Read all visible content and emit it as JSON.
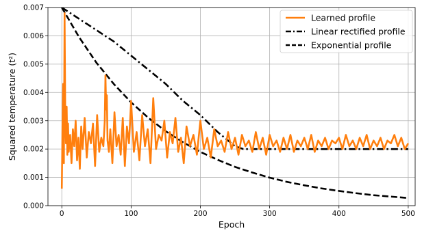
{
  "chart_data": {
    "type": "line",
    "title": "",
    "xlabel": "Epoch",
    "ylabel": "Squared temperature (t²)",
    "xlim": [
      -20,
      510
    ],
    "ylim": [
      0,
      0.007
    ],
    "xticks": [
      0,
      100,
      200,
      300,
      400,
      500
    ],
    "xtick_labels": [
      "0",
      "100",
      "200",
      "300",
      "400",
      "500"
    ],
    "yticks": [
      0,
      0.001,
      0.002,
      0.003,
      0.004,
      0.005,
      0.006,
      0.007
    ],
    "ytick_labels": [
      "0.000",
      "0.001",
      "0.002",
      "0.003",
      "0.004",
      "0.005",
      "0.006",
      "0.007"
    ],
    "grid": true,
    "legend_position": "top-right",
    "series": [
      {
        "name": "Learned profile",
        "color": "#ff7f0e",
        "style": "solid",
        "x": [
          0,
          1,
          2,
          3,
          4,
          5,
          6,
          7,
          8,
          9,
          10,
          12,
          14,
          16,
          18,
          20,
          22,
          24,
          26,
          28,
          30,
          33,
          36,
          39,
          42,
          45,
          48,
          51,
          54,
          57,
          60,
          62,
          63,
          64,
          65,
          66,
          68,
          70,
          73,
          76,
          79,
          82,
          85,
          88,
          91,
          94,
          97,
          100,
          104,
          108,
          112,
          116,
          120,
          124,
          128,
          132,
          136,
          140,
          144,
          148,
          152,
          156,
          160,
          164,
          168,
          172,
          176,
          180,
          185,
          190,
          195,
          200,
          205,
          210,
          215,
          220,
          225,
          230,
          235,
          240,
          245,
          250,
          255,
          260,
          265,
          270,
          275,
          280,
          285,
          290,
          295,
          300,
          305,
          310,
          315,
          320,
          325,
          330,
          335,
          340,
          345,
          350,
          355,
          360,
          365,
          370,
          375,
          380,
          385,
          390,
          395,
          400,
          405,
          410,
          415,
          420,
          425,
          430,
          435,
          440,
          445,
          450,
          455,
          460,
          465,
          470,
          475,
          480,
          485,
          490,
          495,
          500
        ],
        "y": [
          0.0006,
          0.0028,
          0.0043,
          0.0015,
          0.0068,
          0.0031,
          0.0022,
          0.0035,
          0.0018,
          0.0029,
          0.0019,
          0.0025,
          0.0015,
          0.0027,
          0.0021,
          0.003,
          0.0016,
          0.0024,
          0.0013,
          0.0028,
          0.002,
          0.0031,
          0.0017,
          0.0026,
          0.0022,
          0.0029,
          0.0014,
          0.0032,
          0.0019,
          0.0024,
          0.0021,
          0.003,
          0.0046,
          0.0034,
          0.0039,
          0.0023,
          0.0019,
          0.0027,
          0.0015,
          0.0033,
          0.0021,
          0.0025,
          0.0018,
          0.0031,
          0.0014,
          0.0028,
          0.0022,
          0.0037,
          0.0019,
          0.0026,
          0.0016,
          0.0032,
          0.0021,
          0.0027,
          0.0015,
          0.0038,
          0.002,
          0.0025,
          0.0023,
          0.003,
          0.0017,
          0.0026,
          0.0022,
          0.0031,
          0.0019,
          0.0024,
          0.0015,
          0.0028,
          0.0021,
          0.0025,
          0.0018,
          0.003,
          0.002,
          0.0024,
          0.0017,
          0.0027,
          0.0021,
          0.0023,
          0.0019,
          0.0026,
          0.002,
          0.0024,
          0.0018,
          0.0025,
          0.0021,
          0.0023,
          0.0019,
          0.0026,
          0.002,
          0.0024,
          0.0018,
          0.0025,
          0.0021,
          0.0023,
          0.0019,
          0.0024,
          0.002,
          0.0025,
          0.0019,
          0.0023,
          0.0021,
          0.0024,
          0.002,
          0.0025,
          0.0019,
          0.0023,
          0.0021,
          0.0024,
          0.002,
          0.0023,
          0.0022,
          0.0024,
          0.002,
          0.0025,
          0.0021,
          0.0023,
          0.002,
          0.0024,
          0.0021,
          0.0025,
          0.002,
          0.0023,
          0.0021,
          0.0024,
          0.002,
          0.0023,
          0.0022,
          0.0025,
          0.0021,
          0.0024,
          0.002,
          0.0022
        ]
      },
      {
        "name": "Linear rectified profile",
        "color": "#000000",
        "style": "dashdot",
        "x": [
          0,
          25,
          50,
          75,
          100,
          125,
          150,
          175,
          200,
          225,
          250,
          262,
          300,
          350,
          400,
          450,
          500
        ],
        "y": [
          0.007,
          0.0066,
          0.0062,
          0.0058,
          0.0053,
          0.0048,
          0.0043,
          0.0037,
          0.0032,
          0.0026,
          0.0021,
          0.002,
          0.002,
          0.002,
          0.002,
          0.002,
          0.002
        ]
      },
      {
        "name": "Exponential profile",
        "color": "#000000",
        "style": "dashed",
        "x": [
          0,
          25,
          50,
          75,
          100,
          125,
          150,
          175,
          200,
          225,
          250,
          275,
          300,
          325,
          350,
          375,
          400,
          425,
          450,
          475,
          500
        ],
        "y": [
          0.007,
          0.00595,
          0.00505,
          0.0043,
          0.00365,
          0.0031,
          0.00263,
          0.00224,
          0.0019,
          0.00162,
          0.00137,
          0.00117,
          0.00099,
          0.00084,
          0.00072,
          0.00061,
          0.00052,
          0.00044,
          0.00037,
          0.00032,
          0.00027
        ]
      }
    ]
  }
}
